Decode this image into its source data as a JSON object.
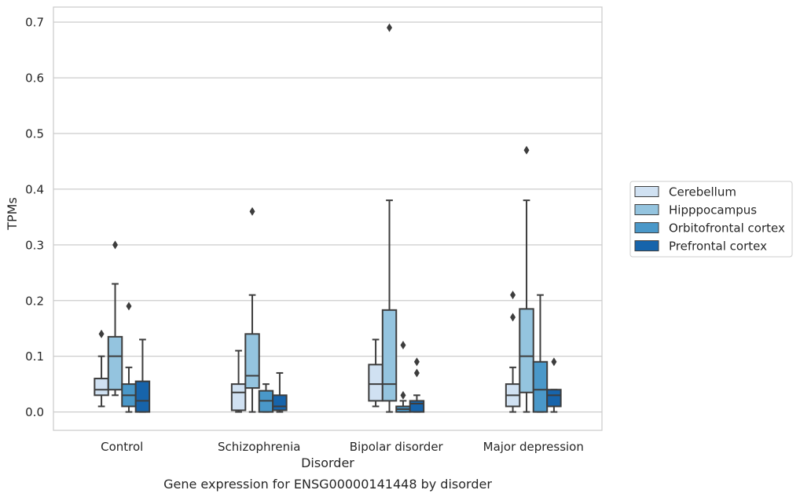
{
  "chart_data": {
    "type": "box",
    "title": "Gene expression for ENSG00000141448 by disorder",
    "xlabel": "Disorder",
    "ylabel": "TPMs",
    "ylim": [
      -0.033,
      0.727
    ],
    "yticks": [
      "0.0",
      "0.1",
      "0.2",
      "0.3",
      "0.4",
      "0.5",
      "0.6",
      "0.7"
    ],
    "grid": true,
    "legend_position": "right",
    "categories": [
      "Control",
      "Schizophrenia",
      "Bipolar disorder",
      "Major depression"
    ],
    "series": [
      {
        "name": "Cerebellum",
        "color": "#d0e1f2",
        "boxes": [
          {
            "whislo": 0.01,
            "q1": 0.03,
            "med": 0.04,
            "q3": 0.06,
            "whishi": 0.1,
            "fliers": [
              0.14
            ]
          },
          {
            "whislo": 0.0,
            "q1": 0.003,
            "med": 0.035,
            "q3": 0.05,
            "whishi": 0.11,
            "fliers": []
          },
          {
            "whislo": 0.01,
            "q1": 0.02,
            "med": 0.05,
            "q3": 0.085,
            "whishi": 0.13,
            "fliers": []
          },
          {
            "whislo": 0.0,
            "q1": 0.01,
            "med": 0.03,
            "q3": 0.05,
            "whishi": 0.08,
            "fliers": [
              0.17,
              0.21
            ]
          }
        ]
      },
      {
        "name": "Hipppocampus",
        "color": "#94c4df",
        "boxes": [
          {
            "whislo": 0.03,
            "q1": 0.04,
            "med": 0.1,
            "q3": 0.135,
            "whishi": 0.23,
            "fliers": [
              0.3
            ]
          },
          {
            "whislo": 0.0,
            "q1": 0.043,
            "med": 0.065,
            "q3": 0.14,
            "whishi": 0.21,
            "fliers": [
              0.36
            ]
          },
          {
            "whislo": 0.0,
            "q1": 0.02,
            "med": 0.05,
            "q3": 0.183,
            "whishi": 0.38,
            "fliers": [
              0.69
            ]
          },
          {
            "whislo": 0.0,
            "q1": 0.035,
            "med": 0.1,
            "q3": 0.185,
            "whishi": 0.38,
            "fliers": [
              0.47
            ]
          }
        ]
      },
      {
        "name": "Orbitofrontal cortex",
        "color": "#4a98c9",
        "boxes": [
          {
            "whislo": 0.0,
            "q1": 0.01,
            "med": 0.03,
            "q3": 0.05,
            "whishi": 0.08,
            "fliers": [
              0.19
            ]
          },
          {
            "whislo": 0.0,
            "q1": 0.0,
            "med": 0.02,
            "q3": 0.038,
            "whishi": 0.05,
            "fliers": []
          },
          {
            "whislo": 0.0,
            "q1": 0.0,
            "med": 0.005,
            "q3": 0.01,
            "whishi": 0.02,
            "fliers": [
              0.03,
              0.12
            ]
          },
          {
            "whislo": 0.0,
            "q1": 0.0,
            "med": 0.04,
            "q3": 0.09,
            "whishi": 0.21,
            "fliers": []
          }
        ]
      },
      {
        "name": "Prefrontal cortex",
        "color": "#1764ab",
        "boxes": [
          {
            "whislo": 0.0,
            "q1": 0.0,
            "med": 0.02,
            "q3": 0.055,
            "whishi": 0.13,
            "fliers": []
          },
          {
            "whislo": 0.0,
            "q1": 0.003,
            "med": 0.01,
            "q3": 0.03,
            "whishi": 0.07,
            "fliers": []
          },
          {
            "whislo": 0.0,
            "q1": 0.0,
            "med": 0.015,
            "q3": 0.02,
            "whishi": 0.03,
            "fliers": [
              0.07,
              0.09
            ]
          },
          {
            "whislo": 0.0,
            "q1": 0.01,
            "med": 0.03,
            "q3": 0.04,
            "whishi": 0.04,
            "fliers": [
              0.09
            ]
          }
        ]
      }
    ]
  }
}
